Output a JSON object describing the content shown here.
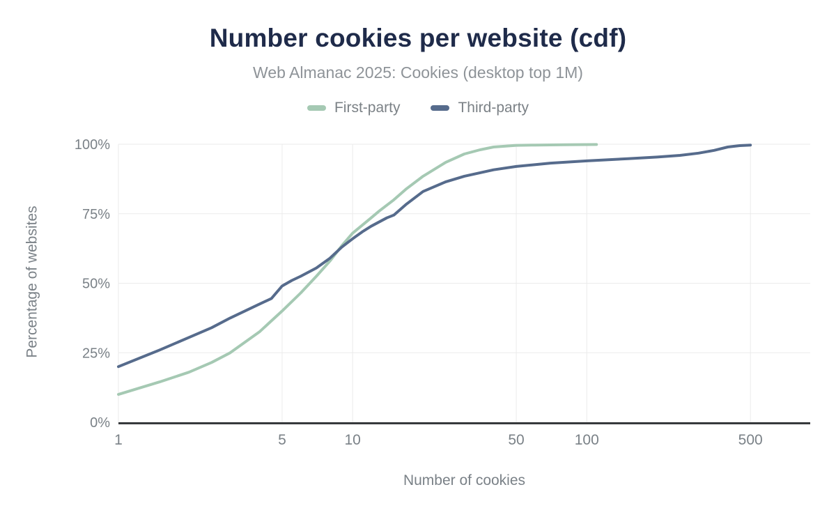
{
  "header": {
    "title": "Number cookies per website (cdf)",
    "subtitle": "Web Almanac 2025: Cookies (desktop top 1M)"
  },
  "legend": {
    "items": [
      {
        "label": "First-party",
        "color": "#a5c9b3"
      },
      {
        "label": "Third-party",
        "color": "#566b8c"
      }
    ]
  },
  "axes": {
    "x_title": "Number of cookies",
    "y_title": "Percentage of websites",
    "x_tick_labels": [
      "1",
      "5",
      "10",
      "50",
      "100",
      "500"
    ],
    "y_tick_labels": [
      "0%",
      "25%",
      "50%",
      "75%",
      "100%"
    ]
  },
  "colors": {
    "title": "#1f2b4a",
    "subtitle": "#8e9398",
    "tick_label": "#7a8187",
    "gridline": "#ebebeb",
    "axis_line": "#37393c",
    "background": "#ffffff",
    "first_party": "#a5c9b3",
    "third_party": "#566b8c"
  },
  "chart_data": {
    "type": "line",
    "title": "Number cookies per website (cdf)",
    "subtitle": "Web Almanac 2025: Cookies (desktop top 1M)",
    "xlabel": "Number of cookies",
    "ylabel": "Percentage of websites",
    "x_scale": "log10",
    "x_ticks": [
      1,
      5,
      10,
      50,
      100,
      500
    ],
    "x_range": [
      1,
      900
    ],
    "y_ticks": [
      0,
      25,
      50,
      75,
      100
    ],
    "y_range": [
      0,
      100
    ],
    "y_unit": "%",
    "grid": true,
    "legend_position": "top",
    "series": [
      {
        "name": "First-party",
        "color": "#a5c9b3",
        "points": [
          [
            1,
            10
          ],
          [
            1.5,
            14.5
          ],
          [
            2,
            18
          ],
          [
            2.5,
            21.5
          ],
          [
            3,
            25
          ],
          [
            4,
            32.5
          ],
          [
            5,
            40
          ],
          [
            6,
            46.5
          ],
          [
            7,
            52.5
          ],
          [
            8,
            58
          ],
          [
            9,
            63.5
          ],
          [
            10,
            68
          ],
          [
            12,
            73.5
          ],
          [
            13,
            76
          ],
          [
            15,
            80
          ],
          [
            17,
            84
          ],
          [
            20,
            88.5
          ],
          [
            25,
            93.5
          ],
          [
            30,
            96.5
          ],
          [
            35,
            98
          ],
          [
            40,
            99
          ],
          [
            50,
            99.6
          ],
          [
            60,
            99.7
          ],
          [
            80,
            99.8
          ],
          [
            110,
            99.9
          ]
        ]
      },
      {
        "name": "Third-party",
        "color": "#566b8c",
        "points": [
          [
            1,
            20
          ],
          [
            1.5,
            26
          ],
          [
            2,
            30.5
          ],
          [
            2.5,
            34
          ],
          [
            3,
            37.5
          ],
          [
            4,
            42.5
          ],
          [
            4.5,
            44.5
          ],
          [
            5,
            49
          ],
          [
            5.5,
            51
          ],
          [
            6,
            52.5
          ],
          [
            7,
            55.5
          ],
          [
            8,
            59
          ],
          [
            9,
            63
          ],
          [
            10,
            66
          ],
          [
            11,
            68.5
          ],
          [
            12,
            70.5
          ],
          [
            14,
            73.5
          ],
          [
            15,
            74.5
          ],
          [
            17,
            78.5
          ],
          [
            20,
            83
          ],
          [
            25,
            86.5
          ],
          [
            30,
            88.5
          ],
          [
            40,
            90.8
          ],
          [
            50,
            92
          ],
          [
            70,
            93.2
          ],
          [
            100,
            94
          ],
          [
            150,
            94.8
          ],
          [
            200,
            95.4
          ],
          [
            250,
            96
          ],
          [
            300,
            96.8
          ],
          [
            350,
            97.8
          ],
          [
            400,
            99
          ],
          [
            450,
            99.5
          ],
          [
            500,
            99.7
          ]
        ]
      }
    ]
  }
}
